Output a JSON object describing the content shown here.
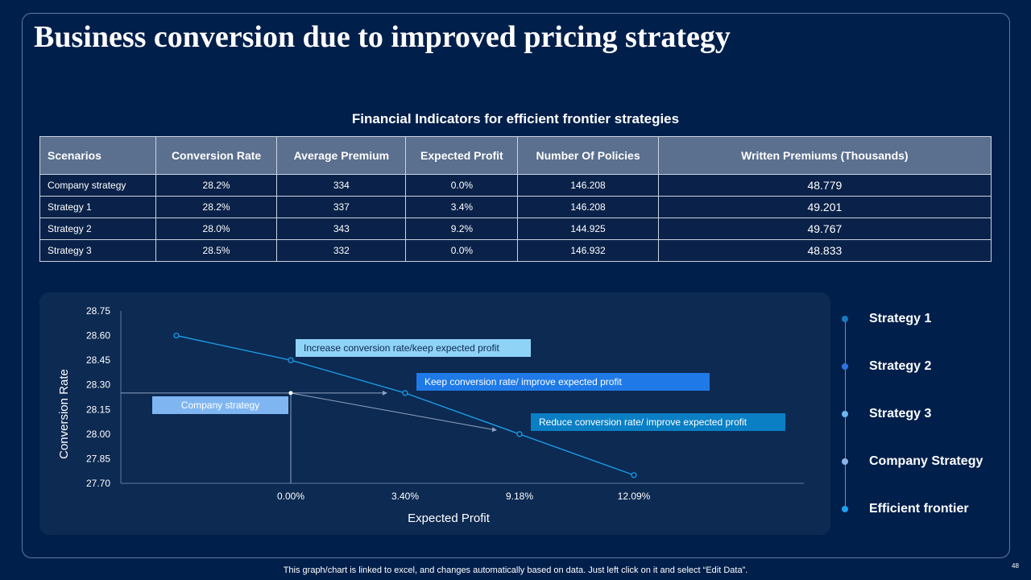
{
  "title": "Business conversion due to improved pricing strategy",
  "table": {
    "title": "Financial Indicators for efficient frontier strategies",
    "headers": [
      "Scenarios",
      "Conversion Rate",
      "Average Premium",
      "Expected Profit",
      "Number Of Policies",
      "Written Premiums (Thousands)"
    ],
    "rows": [
      [
        "Company strategy",
        "28.2%",
        "334",
        "0.0%",
        "146.208",
        "48.779"
      ],
      [
        "Strategy 1",
        "28.2%",
        "337",
        "3.4%",
        "146.208",
        "49.201"
      ],
      [
        "Strategy 2",
        "28.0%",
        "343",
        "9.2%",
        "144.925",
        "49.767"
      ],
      [
        "Strategy 3",
        "28.5%",
        "332",
        "0.0%",
        "146.932",
        "48.833"
      ]
    ]
  },
  "chart_data": {
    "type": "line",
    "xlabel": "Expected Profit",
    "ylabel": "Conversion Rate",
    "ylim": [
      27.7,
      28.75
    ],
    "yticks": [
      "28.75",
      "28.60",
      "28.45",
      "28.30",
      "28.15",
      "28.00",
      "27.85",
      "27.70"
    ],
    "categories": [
      "",
      "0.00%",
      "3.40%",
      "9.18%",
      "12.09%"
    ],
    "series": [
      {
        "name": "Efficient frontier",
        "values": [
          28.6,
          28.45,
          28.25,
          28.0,
          27.75
        ],
        "color": "#1aa3f0"
      }
    ],
    "company_point": {
      "category": "0.00%",
      "value": 28.25
    },
    "annotations": [
      {
        "text": "Increase conversion  rate/keep expected profit",
        "color": "#8fd3f7",
        "textColor": "#0d2a52"
      },
      {
        "text": "Keep conversion  rate/ improve  expected profit",
        "color": "#1f7ae8",
        "textColor": "#ffffff"
      },
      {
        "text": "Reduce conversion rate/ improve expected profit",
        "color": "#0a7fc4",
        "textColor": "#ffffff"
      },
      {
        "text": "Company  strategy",
        "color": "#7fb6f2",
        "textColor": "#ffffff"
      }
    ]
  },
  "legend": [
    {
      "label": "Strategy 1",
      "color": "#1a78c2"
    },
    {
      "label": "Strategy 2",
      "color": "#2d74e0"
    },
    {
      "label": "Strategy 3",
      "color": "#6cb8ee"
    },
    {
      "label": "Company Strategy",
      "color": "#8fb4e6"
    },
    {
      "label": "Efficient frontier",
      "color": "#1aa3f0"
    }
  ],
  "footer": "This graph/chart is linked to excel, and changes automatically based on data. Just left click on it and select “Edit Data”.",
  "page_number": "48"
}
